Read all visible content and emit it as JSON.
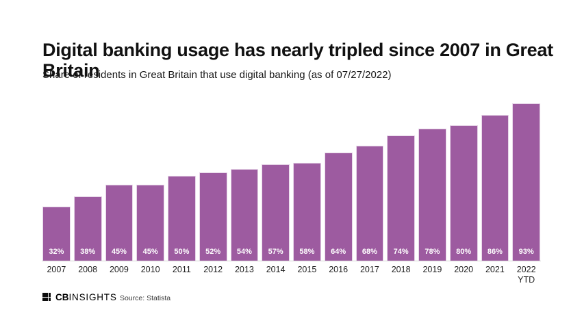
{
  "header": {
    "title": "Digital banking usage has nearly tripled since 2007 in Great Britain",
    "subtitle": "Share of residents in Great Britain that use digital banking (as of 07/27/2022)"
  },
  "chart_data": {
    "type": "bar",
    "title": "Digital banking usage has nearly tripled since 2007 in Great Britain",
    "subtitle": "Share of residents in Great Britain that use digital banking (as of 07/27/2022)",
    "categories": [
      "2007",
      "2008",
      "2009",
      "2010",
      "2011",
      "2012",
      "2013",
      "2014",
      "2015",
      "2016",
      "2017",
      "2018",
      "2019",
      "2020",
      "2021",
      "2022 YTD"
    ],
    "values": [
      32,
      38,
      45,
      45,
      50,
      52,
      54,
      57,
      58,
      64,
      68,
      74,
      78,
      80,
      86,
      93
    ],
    "value_labels": [
      "32%",
      "38%",
      "45%",
      "45%",
      "50%",
      "52%",
      "54%",
      "57%",
      "58%",
      "64%",
      "68%",
      "74%",
      "78%",
      "80%",
      "86%",
      "93%"
    ],
    "unit": "%",
    "xlabel": "",
    "ylabel": "",
    "ylim": [
      0,
      100
    ],
    "grid": false,
    "legend": "none",
    "value_labels_position": "inside-bottom"
  },
  "footer": {
    "logo_text_bold": "CB",
    "logo_text_light": "INSIGHTS",
    "source": "Source: Statista"
  },
  "colors": {
    "bar": "#9d5ba0",
    "bar_border": "#e7d6e8",
    "value_label_text": "#ffffff",
    "title_text": "#111111",
    "tick_text": "#1d1d1d",
    "axis_line": "#d4d4d4",
    "background": "#ffffff"
  }
}
